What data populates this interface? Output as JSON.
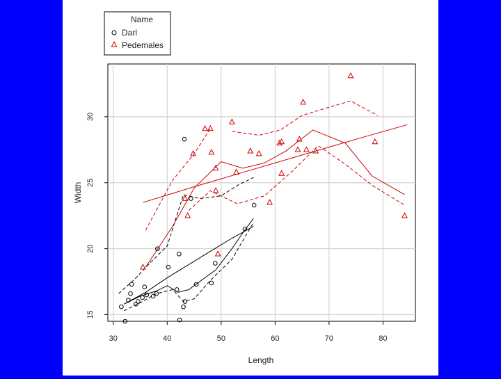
{
  "chart_data": {
    "type": "scatter",
    "xlabel": "Length",
    "ylabel": "Width",
    "xlim": [
      29,
      86
    ],
    "ylim": [
      14.5,
      34
    ],
    "xticks": [
      30,
      40,
      50,
      60,
      70,
      80
    ],
    "yticks": [
      15,
      20,
      25,
      30
    ],
    "grid": true,
    "legend": {
      "title": "Name",
      "position": "top-left-outside",
      "entries": [
        {
          "label": "Darl",
          "marker": "circle",
          "color": "#000000"
        },
        {
          "label": "Pedemales",
          "marker": "triangle",
          "color": "#cc0000"
        }
      ]
    },
    "series": [
      {
        "name": "Darl",
        "marker": "circle",
        "color": "#000000",
        "points": [
          [
            31.5,
            15.6
          ],
          [
            32.2,
            14.5
          ],
          [
            32.8,
            16.1
          ],
          [
            33.2,
            16.6
          ],
          [
            33.4,
            17.3
          ],
          [
            34.2,
            15.8
          ],
          [
            34.6,
            16.0
          ],
          [
            35.4,
            16.3
          ],
          [
            35.8,
            17.1
          ],
          [
            36.2,
            16.5
          ],
          [
            37.4,
            16.4
          ],
          [
            38.0,
            16.6
          ],
          [
            38.2,
            20.0
          ],
          [
            40.2,
            18.6
          ],
          [
            41.8,
            16.9
          ],
          [
            42.2,
            19.6
          ],
          [
            42.3,
            14.6
          ],
          [
            43.0,
            15.6
          ],
          [
            43.3,
            16.0
          ],
          [
            43.2,
            28.3
          ],
          [
            44.4,
            23.8
          ],
          [
            45.4,
            17.3
          ],
          [
            48.2,
            17.4
          ],
          [
            48.9,
            18.9
          ],
          [
            54.4,
            21.5
          ],
          [
            56.1,
            23.3
          ]
        ],
        "lines": [
          {
            "style": "dashed",
            "points": [
              [
                31,
                16.6
              ],
              [
                34,
                17.7
              ],
              [
                37,
                19.0
              ],
              [
                40,
                20.2
              ],
              [
                43,
                24.1
              ],
              [
                46,
                23.8
              ],
              [
                50,
                24.0
              ],
              [
                53,
                24.8
              ],
              [
                56,
                25.4
              ]
            ]
          },
          {
            "style": "solid",
            "points": [
              [
                32,
                15.8
              ],
              [
                35,
                16.4
              ],
              [
                38,
                16.8
              ],
              [
                40,
                17.2
              ],
              [
                42,
                16.7
              ],
              [
                44,
                16.9
              ],
              [
                46,
                17.5
              ],
              [
                49,
                18.4
              ],
              [
                52,
                20.0
              ],
              [
                54,
                21.2
              ],
              [
                56,
                22.3
              ]
            ]
          },
          {
            "style": "dashed",
            "points": [
              [
                32,
                15.3
              ],
              [
                35,
                15.9
              ],
              [
                38,
                16.6
              ],
              [
                41,
                16.9
              ],
              [
                43,
                16.0
              ],
              [
                45,
                16.2
              ],
              [
                48,
                17.6
              ],
              [
                52,
                19.2
              ],
              [
                56,
                22.0
              ]
            ]
          },
          {
            "style": "solid",
            "points": [
              [
                32,
                15.8
              ],
              [
                36,
                16.7
              ],
              [
                40,
                17.8
              ],
              [
                44,
                18.8
              ],
              [
                48,
                19.8
              ],
              [
                52,
                20.8
              ],
              [
                56,
                21.7
              ]
            ]
          }
        ]
      },
      {
        "name": "Pedemales",
        "marker": "triangle",
        "color": "#cc0000",
        "points": [
          [
            35.5,
            18.6
          ],
          [
            43.3,
            23.8
          ],
          [
            43.8,
            22.5
          ],
          [
            44.8,
            27.2
          ],
          [
            47.0,
            29.1
          ],
          [
            48.0,
            29.1
          ],
          [
            48.2,
            27.3
          ],
          [
            49.0,
            26.1
          ],
          [
            49.0,
            24.4
          ],
          [
            49.4,
            19.6
          ],
          [
            52.0,
            29.6
          ],
          [
            52.8,
            25.8
          ],
          [
            55.4,
            27.4
          ],
          [
            57.0,
            27.2
          ],
          [
            59.0,
            23.5
          ],
          [
            60.8,
            28.0
          ],
          [
            61.2,
            28.1
          ],
          [
            61.2,
            25.7
          ],
          [
            64.2,
            27.5
          ],
          [
            64.5,
            28.3
          ],
          [
            65.2,
            31.1
          ],
          [
            65.8,
            27.5
          ],
          [
            67.5,
            27.4
          ],
          [
            74.0,
            33.1
          ],
          [
            78.5,
            28.1
          ],
          [
            84.0,
            22.5
          ]
        ],
        "lines": [
          {
            "style": "solid",
            "points": [
              [
                35.5,
                23.5
              ],
              [
                45,
                24.7
              ],
              [
                55,
                25.9
              ],
              [
                65,
                27.1
              ],
              [
                75,
                28.3
              ],
              [
                84.5,
                29.4
              ]
            ]
          },
          {
            "style": "solid",
            "points": [
              [
                36,
                18.6
              ],
              [
                41,
                21.7
              ],
              [
                45,
                24.6
              ],
              [
                50,
                26.6
              ],
              [
                54,
                26.1
              ],
              [
                58,
                26.5
              ],
              [
                62,
                27.4
              ],
              [
                67,
                29.0
              ],
              [
                73,
                28.0
              ],
              [
                78,
                25.5
              ],
              [
                84,
                24.1
              ]
            ]
          },
          {
            "style": "dashed",
            "points": [
              [
                36,
                21.4
              ],
              [
                41,
                25.2
              ],
              [
                45,
                27.2
              ],
              [
                48,
                29.1
              ]
            ]
          },
          {
            "style": "dashed",
            "points": [
              [
                44,
                22.9
              ],
              [
                48,
                24.4
              ],
              [
                53,
                23.4
              ],
              [
                58,
                24.0
              ],
              [
                63,
                25.8
              ],
              [
                68,
                27.8
              ],
              [
                73,
                26.4
              ],
              [
                78,
                24.8
              ],
              [
                84,
                23.3
              ]
            ]
          },
          {
            "style": "dashed",
            "points": [
              [
                52,
                28.9
              ],
              [
                57,
                28.6
              ],
              [
                61,
                29.0
              ],
              [
                65,
                30.1
              ],
              [
                69,
                30.6
              ],
              [
                74,
                31.2
              ],
              [
                79,
                30.1
              ]
            ]
          }
        ]
      }
    ]
  }
}
